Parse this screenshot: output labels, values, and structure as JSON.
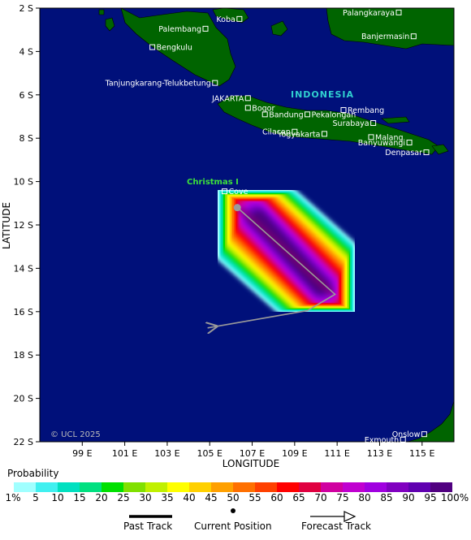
{
  "axes": {
    "xlabel": "LONGITUDE",
    "ylabel": "LATITUDE",
    "xticks": [
      "99 E",
      "101 E",
      "103 E",
      "105 E",
      "107 E",
      "109 E",
      "111 E",
      "113 E",
      "115 E"
    ],
    "yticks": [
      "2 S",
      "4 S",
      "6 S",
      "8 S",
      "10 S",
      "12 S",
      "14 S",
      "16 S",
      "18 S",
      "20 S",
      "22 S"
    ],
    "xlim": [
      97,
      116.5
    ],
    "ylim": [
      -22,
      -2
    ]
  },
  "labels": {
    "country": "INDONESIA",
    "island": "Christmas I",
    "copyright": "© UCL 2025"
  },
  "cities": [
    {
      "name": "Koba",
      "lon": 106.4,
      "lat": -2.5
    },
    {
      "name": "Palangkaraya",
      "lon": 113.9,
      "lat": -2.2
    },
    {
      "name": "Palembang",
      "lon": 104.8,
      "lat": -2.95
    },
    {
      "name": "Banjermasin",
      "lon": 114.6,
      "lat": -3.3
    },
    {
      "name": "Bengkulu",
      "lon": 102.3,
      "lat": -3.8
    },
    {
      "name": "Tanjungkarang-Telukbetung",
      "lon": 105.25,
      "lat": -5.45
    },
    {
      "name": "JAKARTA",
      "lon": 106.8,
      "lat": -6.15
    },
    {
      "name": "Bogor",
      "lon": 106.8,
      "lat": -6.6
    },
    {
      "name": "Bandung",
      "lon": 107.6,
      "lat": -6.9
    },
    {
      "name": "Rembang",
      "lon": 111.3,
      "lat": -6.7
    },
    {
      "name": "Pekalongan",
      "lon": 109.6,
      "lat": -6.9
    },
    {
      "name": "Cilacap",
      "lon": 109.0,
      "lat": -7.7
    },
    {
      "name": "Surabaya",
      "lon": 112.7,
      "lat": -7.3
    },
    {
      "name": "Yogyakarta",
      "lon": 110.4,
      "lat": -7.8
    },
    {
      "name": "Malang",
      "lon": 112.6,
      "lat": -7.95
    },
    {
      "name": "Banyuwangi",
      "lon": 114.4,
      "lat": -8.2
    },
    {
      "name": "Denpasar",
      "lon": 115.2,
      "lat": -8.65
    },
    {
      "name": "Cove",
      "lon": 105.7,
      "lat": -10.45
    },
    {
      "name": "Onslow",
      "lon": 115.1,
      "lat": -21.65
    },
    {
      "name": "Exmouth",
      "lon": 114.1,
      "lat": -21.9
    }
  ],
  "storm": {
    "current_position": {
      "lon": 106.3,
      "lat": -11.2
    },
    "forecast_track": [
      {
        "lon": 106.3,
        "lat": -11.2
      },
      {
        "lon": 110.9,
        "lat": -15.2
      },
      {
        "lon": 109.6,
        "lat": -15.95
      },
      {
        "lon": 104.9,
        "lat": -16.75
      }
    ]
  },
  "probability_legend": {
    "title": "Probability",
    "labels": [
      "1%",
      "5",
      "10",
      "15",
      "20",
      "25",
      "30",
      "35",
      "40",
      "45",
      "50",
      "55",
      "60",
      "65",
      "70",
      "75",
      "80",
      "85",
      "90",
      "95",
      "100%"
    ],
    "colors": [
      "#a0ffff",
      "#40f0f0",
      "#00e0c0",
      "#00e080",
      "#00e000",
      "#80e000",
      "#c0f000",
      "#ffff00",
      "#ffd000",
      "#ffa000",
      "#ff7000",
      "#ff4000",
      "#ff0000",
      "#e00040",
      "#d000a0",
      "#c000d0",
      "#a000e0",
      "#8000c0",
      "#6000b0",
      "#500080"
    ]
  },
  "track_key": {
    "past": "Past Track",
    "current": "Current Position",
    "forecast": "Forecast Track"
  }
}
